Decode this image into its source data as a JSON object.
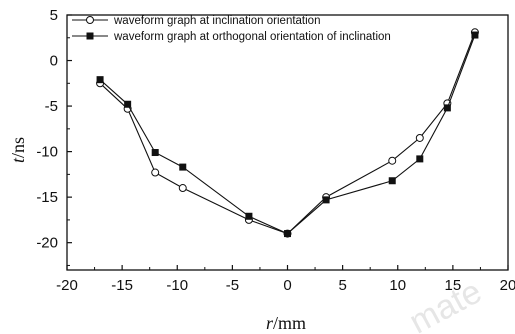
{
  "chart_data": {
    "type": "line",
    "xlabel_var": "r",
    "xlabel_unit": "/mm",
    "ylabel_var": "t",
    "ylabel_unit": "/ns",
    "xlim": [
      -20,
      20
    ],
    "ylim": [
      -23,
      5
    ],
    "xticks": [
      -20,
      -15,
      -10,
      -5,
      0,
      5,
      10,
      15,
      20
    ],
    "yticks": [
      5,
      0,
      -5,
      -10,
      -15,
      -20
    ],
    "grid": false,
    "legend_position": "top-left",
    "series": [
      {
        "name": "waveform graph at inclination orientation",
        "marker": "open-circle",
        "color": "#111111",
        "x": [
          -17,
          -14.5,
          -12,
          -9.5,
          -3.5,
          0,
          3.5,
          9.5,
          12,
          14.5,
          17
        ],
        "y": [
          -2.5,
          -5.3,
          -12.3,
          -14,
          -17.5,
          -19,
          -15,
          -11,
          -8.5,
          -4.7,
          3.1
        ]
      },
      {
        "name": "waveform graph at orthogonal orientation of inclination",
        "marker": "filled-square",
        "color": "#111111",
        "x": [
          -17,
          -14.5,
          -12,
          -9.5,
          -3.5,
          0,
          3.5,
          9.5,
          12,
          14.5,
          17
        ],
        "y": [
          -2.1,
          -4.8,
          -10.1,
          -11.7,
          -17.1,
          -19,
          -15.3,
          -13.2,
          -10.8,
          -5.2,
          2.8
        ]
      }
    ]
  }
}
